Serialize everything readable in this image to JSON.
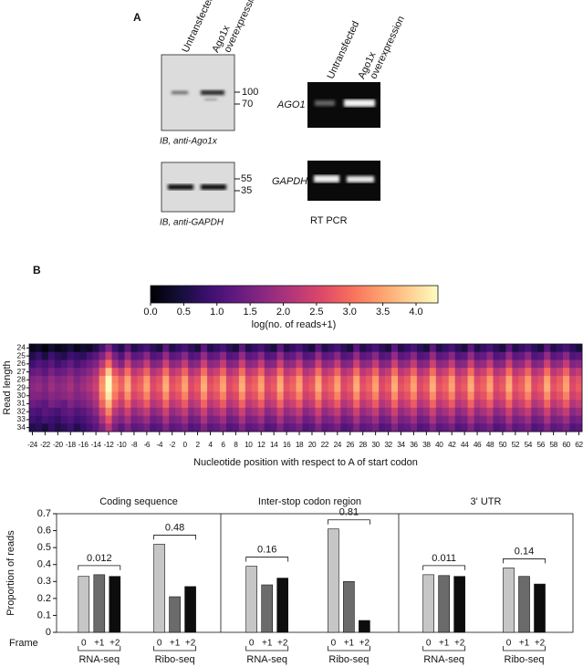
{
  "panel_a": {
    "label": "A",
    "western_lanes": [
      "Untransfected",
      "Ago1x",
      "overexpression"
    ],
    "blot_ago1x": {
      "markers": [
        "100",
        "70"
      ],
      "caption": "IB, anti-Ago1x"
    },
    "blot_gapdh": {
      "markers": [
        "55",
        "35"
      ],
      "caption": "IB, anti-GAPDH"
    },
    "pcr_lanes": [
      "Untransfected",
      "Ago1x",
      "overexpression"
    ],
    "pcr_genes": [
      "AGO1",
      "GAPDH"
    ],
    "pcr_caption": "RT PCR"
  },
  "panel_b": {
    "label": "B"
  },
  "chart_data": [
    {
      "type": "heatmap",
      "colorbar_label": "log(no. of reads+1)",
      "colormap": "magma",
      "zlim": [
        0,
        4.33
      ],
      "zticks": [
        {
          "value": 0,
          "label": "0.0"
        },
        0.5,
        {
          "value": 1,
          "label": "1.0"
        },
        1.5,
        {
          "value": 2,
          "label": "2.0"
        },
        2.5,
        {
          "value": 3,
          "label": "3.0"
        },
        3.5,
        {
          "value": 4,
          "label": "4.0"
        }
      ],
      "x_label": "Nucleotide position with respect to A of start codon",
      "y_label": "Read length",
      "x": [
        -24,
        -23,
        -22,
        -21,
        -20,
        -19,
        -18,
        -17,
        -16,
        -15,
        -14,
        -13,
        -12,
        -11,
        -10,
        -9,
        -8,
        -7,
        -6,
        -5,
        -4,
        -3,
        -2,
        -1,
        0,
        1,
        2,
        3,
        4,
        5,
        6,
        7,
        8,
        9,
        10,
        11,
        12,
        13,
        14,
        15,
        16,
        17,
        18,
        19,
        20,
        21,
        22,
        23,
        24,
        25,
        26,
        27,
        28,
        29,
        30,
        31,
        32,
        33,
        34,
        35,
        36,
        37,
        38,
        39,
        40,
        41,
        42,
        43,
        44,
        45,
        46,
        47,
        48,
        49,
        50,
        51,
        52,
        53,
        54,
        55,
        56,
        57,
        58,
        59,
        60,
        61,
        62
      ],
      "xticks": [
        -24,
        -22,
        -20,
        -18,
        -16,
        -14,
        -12,
        -10,
        -8,
        -6,
        -4,
        -2,
        0,
        2,
        4,
        6,
        8,
        10,
        12,
        14,
        16,
        18,
        20,
        22,
        24,
        26,
        28,
        30,
        32,
        34,
        36,
        38,
        40,
        42,
        44,
        46,
        48,
        50,
        52,
        54,
        56,
        58,
        60,
        62
      ],
      "y": [
        24,
        25,
        26,
        27,
        28,
        29,
        30,
        31,
        32,
        33,
        34
      ],
      "z": [
        [
          0.2,
          0.3,
          0.1,
          0.4,
          0.2,
          0.3,
          0.5,
          0.2,
          0.4,
          0.3,
          0.6,
          1.0,
          1.6,
          0.9,
          0.6,
          1.2,
          0.6,
          0.8,
          1.0,
          0.7,
          0.5,
          1.2,
          0.6,
          0.8,
          1.0,
          0.7,
          0.5,
          1.2,
          0.6,
          0.8,
          1.0,
          0.7,
          0.5,
          1.2,
          0.6,
          0.8,
          1.0,
          0.7,
          0.5,
          1.2,
          0.6,
          0.8,
          1.0,
          0.7,
          0.5,
          1.2,
          0.6,
          0.8,
          1.0,
          0.7,
          0.5,
          1.2,
          0.6,
          0.8,
          1.0,
          0.7,
          0.5,
          1.2,
          0.6,
          0.8,
          1.0,
          0.7,
          0.5,
          1.2,
          0.6,
          0.8,
          1.0,
          0.7,
          0.5,
          1.2,
          0.6,
          0.8,
          1.0,
          0.7,
          0.5,
          1.2,
          0.6,
          0.8,
          1.0,
          0.7,
          0.5,
          1.2,
          0.6,
          0.8,
          1.0,
          0.7,
          0.5
        ],
        [
          0.6,
          0.8,
          0.5,
          0.9,
          0.7,
          0.6,
          0.9,
          0.8,
          0.7,
          1.0,
          1.2,
          1.6,
          2.3,
          1.5,
          1.1,
          1.8,
          1.2,
          1.3,
          1.7,
          1.1,
          1.2,
          1.8,
          1.2,
          1.3,
          1.7,
          1.1,
          1.2,
          1.8,
          1.2,
          1.3,
          1.7,
          1.1,
          1.2,
          1.8,
          1.2,
          1.3,
          1.7,
          1.1,
          1.2,
          1.8,
          1.2,
          1.3,
          1.7,
          1.1,
          1.2,
          1.8,
          1.2,
          1.3,
          1.7,
          1.1,
          1.2,
          1.8,
          1.2,
          1.3,
          1.7,
          1.1,
          1.2,
          1.8,
          1.2,
          1.3,
          1.7,
          1.1,
          1.2,
          1.8,
          1.2,
          1.3,
          1.7,
          1.1,
          1.2,
          1.8,
          1.2,
          1.3,
          1.7,
          1.1,
          1.2,
          1.8,
          1.2,
          1.3,
          1.7,
          1.1,
          1.2,
          1.8,
          1.2,
          1.3,
          1.7,
          1.1,
          1.2
        ],
        [
          0.9,
          1.1,
          1.0,
          1.2,
          0.9,
          1.1,
          1.3,
          1.0,
          1.2,
          1.4,
          1.6,
          2.2,
          3.0,
          2.0,
          1.6,
          2.4,
          1.7,
          1.8,
          2.3,
          1.6,
          1.7,
          2.4,
          1.7,
          1.8,
          2.3,
          1.6,
          1.7,
          2.4,
          1.7,
          1.8,
          2.3,
          1.6,
          1.7,
          2.4,
          1.7,
          1.8,
          2.3,
          1.6,
          1.7,
          2.4,
          1.7,
          1.8,
          2.3,
          1.6,
          1.7,
          2.4,
          1.7,
          1.8,
          2.3,
          1.6,
          1.7,
          2.4,
          1.7,
          1.8,
          2.3,
          1.6,
          1.7,
          2.4,
          1.7,
          1.8,
          2.3,
          1.6,
          1.7,
          2.4,
          1.7,
          1.8,
          2.3,
          1.6,
          1.7,
          2.4,
          1.7,
          1.8,
          2.3,
          1.6,
          1.7,
          2.4,
          1.7,
          1.8,
          2.3,
          1.6,
          1.7,
          2.4,
          1.7,
          1.8,
          2.3,
          1.6,
          1.7
        ],
        [
          1.3,
          1.4,
          1.2,
          1.5,
          1.3,
          1.4,
          1.6,
          1.4,
          1.5,
          1.7,
          2.0,
          2.8,
          3.8,
          2.7,
          2.3,
          3.0,
          2.2,
          2.4,
          2.9,
          2.1,
          2.3,
          3.0,
          2.2,
          2.4,
          2.9,
          2.1,
          2.3,
          3.0,
          2.2,
          2.4,
          2.9,
          2.1,
          2.3,
          3.0,
          2.2,
          2.4,
          2.9,
          2.1,
          2.3,
          3.0,
          2.2,
          2.4,
          2.9,
          2.1,
          2.3,
          3.0,
          2.2,
          2.4,
          2.9,
          2.1,
          2.3,
          3.0,
          2.2,
          2.4,
          2.9,
          2.1,
          2.3,
          3.0,
          2.2,
          2.4,
          2.9,
          2.1,
          2.3,
          3.0,
          2.2,
          2.4,
          2.9,
          2.1,
          2.3,
          3.0,
          2.2,
          2.4,
          2.9,
          2.1,
          2.3,
          3.0,
          2.2,
          2.4,
          2.9,
          2.1,
          2.3,
          3.0,
          2.2,
          2.4,
          2.9,
          2.1,
          2.3
        ],
        [
          1.6,
          1.7,
          1.5,
          1.8,
          1.6,
          1.7,
          1.9,
          1.6,
          1.8,
          2.0,
          2.3,
          3.3,
          4.3,
          3.2,
          2.8,
          3.5,
          2.6,
          2.8,
          3.4,
          2.5,
          2.7,
          3.5,
          2.6,
          2.8,
          3.4,
          2.5,
          2.7,
          3.5,
          2.6,
          2.8,
          3.4,
          2.5,
          2.7,
          3.5,
          2.6,
          2.8,
          3.4,
          2.5,
          2.7,
          3.5,
          2.6,
          2.8,
          3.4,
          2.5,
          2.7,
          3.5,
          2.6,
          2.8,
          3.4,
          2.5,
          2.7,
          3.5,
          2.6,
          2.8,
          3.4,
          2.5,
          2.7,
          3.5,
          2.6,
          2.8,
          3.4,
          2.5,
          2.7,
          3.5,
          2.6,
          2.8,
          3.4,
          2.5,
          2.7,
          3.5,
          2.6,
          2.8,
          3.4,
          2.5,
          2.7,
          3.5,
          2.6,
          2.8,
          3.4,
          2.5,
          2.7,
          3.5,
          2.6,
          2.8,
          3.4,
          2.5,
          2.7
        ],
        [
          1.7,
          1.8,
          1.6,
          1.9,
          1.7,
          1.8,
          2.0,
          1.7,
          1.9,
          2.1,
          2.4,
          3.4,
          4.3,
          3.3,
          2.9,
          3.6,
          2.7,
          2.9,
          3.5,
          2.6,
          2.8,
          3.6,
          2.7,
          2.9,
          3.5,
          2.6,
          2.8,
          3.6,
          2.7,
          2.9,
          3.5,
          2.6,
          2.8,
          3.6,
          2.7,
          2.9,
          3.5,
          2.6,
          2.8,
          3.6,
          2.7,
          2.9,
          3.5,
          2.6,
          2.8,
          3.6,
          2.7,
          2.9,
          3.5,
          2.6,
          2.8,
          3.6,
          2.7,
          2.9,
          3.5,
          2.6,
          2.8,
          3.6,
          2.7,
          2.9,
          3.5,
          2.6,
          2.8,
          3.6,
          2.7,
          2.9,
          3.5,
          2.6,
          2.8,
          3.6,
          2.7,
          2.9,
          3.5,
          2.6,
          2.8,
          3.6,
          2.7,
          2.9,
          3.5,
          2.6,
          2.8,
          3.6,
          2.7,
          2.9,
          3.5,
          2.6,
          2.8
        ],
        [
          1.6,
          1.6,
          1.5,
          1.7,
          1.6,
          1.7,
          1.8,
          1.6,
          1.7,
          1.9,
          2.2,
          3.2,
          4.1,
          3.1,
          2.6,
          3.3,
          2.5,
          2.7,
          3.2,
          2.4,
          2.6,
          3.3,
          2.5,
          2.7,
          3.2,
          2.4,
          2.6,
          3.3,
          2.5,
          2.7,
          3.2,
          2.4,
          2.6,
          3.3,
          2.5,
          2.7,
          3.2,
          2.4,
          2.6,
          3.3,
          2.5,
          2.7,
          3.2,
          2.4,
          2.6,
          3.3,
          2.5,
          2.7,
          3.2,
          2.4,
          2.6,
          3.3,
          2.5,
          2.7,
          3.2,
          2.4,
          2.6,
          3.3,
          2.5,
          2.7,
          3.2,
          2.4,
          2.6,
          3.3,
          2.5,
          2.7,
          3.2,
          2.4,
          2.6,
          3.3,
          2.5,
          2.7,
          3.2,
          2.4,
          2.6,
          3.3,
          2.5,
          2.7,
          3.2,
          2.4,
          2.6,
          3.3,
          2.5,
          2.7,
          3.2,
          2.4,
          2.6
        ],
        [
          1.4,
          1.3,
          1.2,
          1.5,
          1.4,
          1.3,
          1.6,
          1.4,
          1.5,
          1.7,
          2.0,
          2.9,
          3.7,
          2.7,
          2.3,
          2.9,
          2.2,
          2.4,
          2.8,
          2.1,
          2.3,
          2.9,
          2.2,
          2.4,
          2.8,
          2.1,
          2.3,
          2.9,
          2.2,
          2.4,
          2.8,
          2.1,
          2.3,
          2.9,
          2.2,
          2.4,
          2.8,
          2.1,
          2.3,
          2.9,
          2.2,
          2.4,
          2.8,
          2.1,
          2.3,
          2.9,
          2.2,
          2.4,
          2.8,
          2.1,
          2.3,
          2.9,
          2.2,
          2.4,
          2.8,
          2.1,
          2.3,
          2.9,
          2.2,
          2.4,
          2.8,
          2.1,
          2.3,
          2.9,
          2.2,
          2.4,
          2.8,
          2.1,
          2.3,
          2.9,
          2.2,
          2.4,
          2.8,
          2.1,
          2.3,
          2.9,
          2.2,
          2.4,
          2.8,
          2.1,
          2.3,
          2.9,
          2.2,
          2.4,
          2.8,
          2.1,
          2.3
        ],
        [
          1.1,
          1.0,
          1.2,
          1.1,
          1.0,
          1.2,
          1.3,
          1.1,
          1.2,
          1.4,
          1.7,
          2.4,
          3.2,
          2.2,
          1.9,
          2.4,
          1.8,
          2.0,
          2.3,
          1.7,
          1.9,
          2.4,
          1.8,
          2.0,
          2.3,
          1.7,
          1.9,
          2.4,
          1.8,
          2.0,
          2.3,
          1.7,
          1.9,
          2.4,
          1.8,
          2.0,
          2.3,
          1.7,
          1.9,
          2.4,
          1.8,
          2.0,
          2.3,
          1.7,
          1.9,
          2.4,
          1.8,
          2.0,
          2.3,
          1.7,
          1.9,
          2.4,
          1.8,
          2.0,
          2.3,
          1.7,
          1.9,
          2.4,
          1.8,
          2.0,
          2.3,
          1.7,
          1.9,
          2.4,
          1.8,
          2.0,
          2.3,
          1.7,
          1.9,
          2.4,
          1.8,
          2.0,
          2.3,
          1.7,
          1.9,
          2.4,
          1.8,
          2.0,
          2.3,
          1.7,
          1.9,
          2.4,
          1.8,
          2.0,
          2.3,
          1.7,
          1.9
        ],
        [
          0.9,
          0.8,
          1.0,
          0.9,
          0.8,
          1.0,
          1.1,
          0.9,
          1.0,
          1.2,
          1.4,
          2.0,
          2.7,
          1.8,
          1.6,
          2.0,
          1.5,
          1.6,
          1.9,
          1.4,
          1.5,
          2.0,
          1.5,
          1.6,
          1.9,
          1.4,
          1.5,
          2.0,
          1.5,
          1.6,
          1.9,
          1.4,
          1.5,
          2.0,
          1.5,
          1.6,
          1.9,
          1.4,
          1.5,
          2.0,
          1.5,
          1.6,
          1.9,
          1.4,
          1.5,
          2.0,
          1.5,
          1.6,
          1.9,
          1.4,
          1.5,
          2.0,
          1.5,
          1.6,
          1.9,
          1.4,
          1.5,
          2.0,
          1.5,
          1.6,
          1.9,
          1.4,
          1.5,
          2.0,
          1.5,
          1.6,
          1.9,
          1.4,
          1.5,
          2.0,
          1.5,
          1.6,
          1.9,
          1.4,
          1.5,
          2.0,
          1.5,
          1.6,
          1.9,
          1.4,
          1.5,
          2.0,
          1.5,
          1.6,
          1.9,
          1.4,
          1.5
        ],
        [
          0.6,
          0.7,
          0.5,
          0.8,
          0.6,
          0.7,
          0.9,
          0.6,
          0.8,
          1.0,
          1.2,
          1.6,
          2.2,
          1.5,
          1.2,
          1.6,
          1.2,
          1.3,
          1.5,
          1.1,
          1.2,
          1.6,
          1.2,
          1.3,
          1.5,
          1.1,
          1.2,
          1.6,
          1.2,
          1.3,
          1.5,
          1.1,
          1.2,
          1.6,
          1.2,
          1.3,
          1.5,
          1.1,
          1.2,
          1.6,
          1.2,
          1.3,
          1.5,
          1.1,
          1.2,
          1.6,
          1.2,
          1.3,
          1.5,
          1.1,
          1.2,
          1.6,
          1.2,
          1.3,
          1.5,
          1.1,
          1.2,
          1.6,
          1.2,
          1.3,
          1.5,
          1.1,
          1.2,
          1.6,
          1.2,
          1.3,
          1.5,
          1.1,
          1.2,
          1.6,
          1.2,
          1.3,
          1.5,
          1.1,
          1.2,
          1.6,
          1.2,
          1.3,
          1.5,
          1.1,
          1.2,
          1.6,
          1.2,
          1.3,
          1.5,
          1.1,
          1.2
        ]
      ]
    },
    {
      "type": "grouped_bar",
      "title": "Coding sequence",
      "y_label": "Proportion of reads",
      "x_row_label": "Frame",
      "groups": [
        "RNA-seq",
        "Ribo-seq"
      ],
      "series": [
        {
          "name": "0",
          "color": "#c6c6c6",
          "values": [
            0.33,
            0.52
          ]
        },
        {
          "name": "+1",
          "color": "#6b6b6b",
          "values": [
            0.34,
            0.21
          ]
        },
        {
          "name": "+2",
          "color": "#0d0d0d",
          "values": [
            0.33,
            0.27
          ]
        }
      ],
      "p_values": [
        0.012,
        0.48
      ],
      "ylim": [
        0,
        0.7
      ],
      "yticks": [
        0,
        0.1,
        0.2,
        0.3,
        0.4,
        0.5,
        0.6,
        0.7
      ]
    },
    {
      "type": "grouped_bar",
      "title": "Inter-stop codon region",
      "groups": [
        "RNA-seq",
        "Ribo-seq"
      ],
      "series": [
        {
          "name": "0",
          "color": "#c6c6c6",
          "values": [
            0.39,
            0.61
          ]
        },
        {
          "name": "+1",
          "color": "#6b6b6b",
          "values": [
            0.28,
            0.3
          ]
        },
        {
          "name": "+2",
          "color": "#0d0d0d",
          "values": [
            0.32,
            0.07
          ]
        }
      ],
      "p_values": [
        0.16,
        0.81
      ],
      "ylim": [
        0,
        0.7
      ]
    },
    {
      "type": "grouped_bar",
      "title": "3' UTR",
      "groups": [
        "RNA-seq",
        "Ribo-seq"
      ],
      "series": [
        {
          "name": "0",
          "color": "#c6c6c6",
          "values": [
            0.34,
            0.38
          ]
        },
        {
          "name": "+1",
          "color": "#6b6b6b",
          "values": [
            0.335,
            0.33
          ]
        },
        {
          "name": "+2",
          "color": "#0d0d0d",
          "values": [
            0.33,
            0.285
          ]
        }
      ],
      "p_values": [
        0.011,
        0.14
      ],
      "ylim": [
        0,
        0.7
      ]
    }
  ]
}
